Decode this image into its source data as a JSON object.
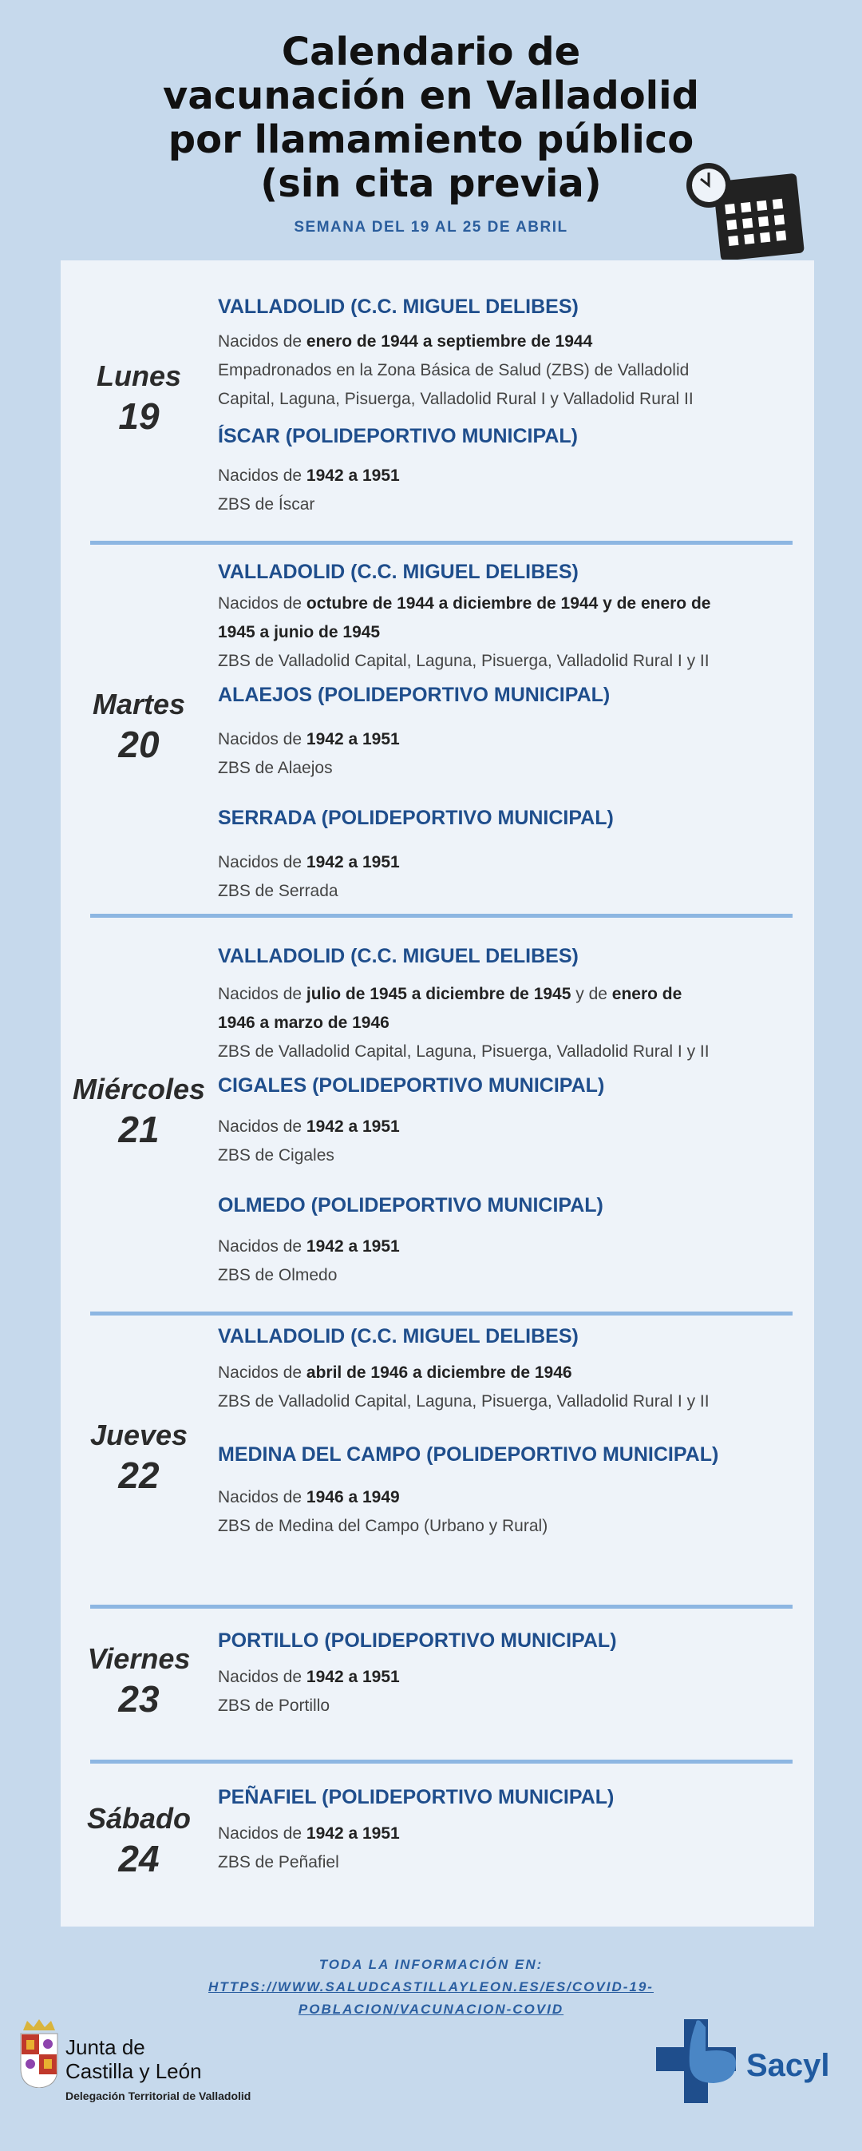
{
  "header": {
    "title_lines": [
      "Calendario de",
      "vacunación en Valladolid",
      "por llamamiento público",
      "(sin cita previa)"
    ],
    "subtitle": "SEMANA DEL 19 AL 25 DE ABRIL",
    "icon": "clock-calendar-icon"
  },
  "colors": {
    "background": "#c6d9ec",
    "panel": "#eef3f9",
    "heading": "#1f4e8c",
    "divider": "#8db6e2",
    "link": "#2a5ea0"
  },
  "days": [
    {
      "name": "Lunes",
      "num": "19",
      "sites": [
        {
          "title": "VALLADOLID (C.C. MIGUEL DELIBES)",
          "lines": [
            [
              {
                "t": "Nacidos de "
              },
              {
                "t": "enero de 1944 a septiembre de 1944",
                "b": true
              }
            ],
            [
              {
                "t": "Empadronados en la Zona Básica de Salud (ZBS) de Valladolid"
              }
            ],
            [
              {
                "t": "Capital, Laguna, Pisuerga, Valladolid Rural I y Valladolid Rural II"
              }
            ]
          ]
        },
        {
          "title": "ÍSCAR (POLIDEPORTIVO MUNICIPAL)",
          "lines": [
            [
              {
                "t": "Nacidos de "
              },
              {
                "t": "1942 a 1951",
                "b": true
              }
            ],
            [
              {
                "t": "ZBS de Íscar"
              }
            ]
          ]
        }
      ]
    },
    {
      "name": "Martes",
      "num": "20",
      "sites": [
        {
          "title": "VALLADOLID (C.C. MIGUEL DELIBES)",
          "lines": [
            [
              {
                "t": "Nacidos de "
              },
              {
                "t": "octubre de 1944 a diciembre de 1944 y de enero de",
                "b": true
              }
            ],
            [
              {
                "t": "1945 a junio de 1945",
                "b": true
              }
            ],
            [
              {
                "t": "ZBS de Valladolid Capital, Laguna, Pisuerga, Valladolid Rural I y  II"
              }
            ]
          ]
        },
        {
          "title": "ALAEJOS (POLIDEPORTIVO MUNICIPAL)",
          "lines": [
            [
              {
                "t": "Nacidos de "
              },
              {
                "t": "1942 a 1951",
                "b": true
              }
            ],
            [
              {
                "t": "ZBS de Alaejos"
              }
            ]
          ]
        },
        {
          "title": "SERRADA (POLIDEPORTIVO MUNICIPAL)",
          "lines": [
            [
              {
                "t": "Nacidos de "
              },
              {
                "t": "1942 a 1951",
                "b": true
              }
            ],
            [
              {
                "t": "ZBS de Serrada"
              }
            ]
          ]
        }
      ]
    },
    {
      "name": "Miércoles",
      "num": "21",
      "sites": [
        {
          "title": "VALLADOLID (C.C. MIGUEL DELIBES)",
          "lines": [
            [
              {
                "t": "Nacidos de "
              },
              {
                "t": "julio de 1945 a diciembre de 1945",
                "b": true
              },
              {
                "t": " y de "
              },
              {
                "t": "enero de",
                "b": true
              }
            ],
            [
              {
                "t": "1946 a marzo de 1946",
                "b": true
              }
            ],
            [
              {
                "t": "ZBS de Valladolid Capital, Laguna, Pisuerga, Valladolid Rural I y II"
              }
            ]
          ]
        },
        {
          "title": "CIGALES (POLIDEPORTIVO MUNICIPAL)",
          "lines": [
            [
              {
                "t": "Nacidos de "
              },
              {
                "t": "1942 a 1951",
                "b": true
              }
            ],
            [
              {
                "t": "ZBS de Cigales"
              }
            ]
          ]
        },
        {
          "title": "OLMEDO (POLIDEPORTIVO MUNICIPAL)",
          "lines": [
            [
              {
                "t": "Nacidos de "
              },
              {
                "t": "1942 a 1951",
                "b": true
              }
            ],
            [
              {
                "t": "ZBS de Olmedo"
              }
            ]
          ]
        }
      ]
    },
    {
      "name": "Jueves",
      "num": "22",
      "sites": [
        {
          "title": "VALLADOLID (C.C. MIGUEL DELIBES)",
          "lines": [
            [
              {
                "t": "Nacidos de "
              },
              {
                "t": "abril de 1946 a diciembre de 1946",
                "b": true
              }
            ],
            [
              {
                "t": "ZBS de Valladolid Capital, Laguna, Pisuerga, Valladolid Rural I y II"
              }
            ]
          ]
        },
        {
          "title": "MEDINA DEL CAMPO (POLIDEPORTIVO MUNICIPAL)",
          "lines": [
            [
              {
                "t": "Nacidos de "
              },
              {
                "t": "1946 a 1949",
                "b": true
              }
            ],
            [
              {
                "t": "ZBS de Medina del Campo (Urbano y Rural)"
              }
            ]
          ]
        }
      ]
    },
    {
      "name": "Viernes",
      "num": "23",
      "sites": [
        {
          "title": "PORTILLO  (POLIDEPORTIVO MUNICIPAL)",
          "lines": [
            [
              {
                "t": "Nacidos de "
              },
              {
                "t": "1942 a 1951",
                "b": true
              }
            ],
            [
              {
                "t": "ZBS de Portillo"
              }
            ]
          ]
        }
      ]
    },
    {
      "name": "Sábado",
      "num": "24",
      "sites": [
        {
          "title": "PEÑAFIEL (POLIDEPORTIVO MUNICIPAL)",
          "lines": [
            [
              {
                "t": "Nacidos de "
              },
              {
                "t": "1942 a 1951",
                "b": true
              }
            ],
            [
              {
                "t": "ZBS de Peñafiel"
              }
            ]
          ]
        }
      ]
    }
  ],
  "footer": {
    "info_label": "TODA LA INFORMACIÓN EN:",
    "url_line1": "HTTPS://WWW.SALUDCASTILLAYLEON.ES/ES/COVID-19-",
    "url_line2": "POBLACION/VACUNACION-COVID"
  },
  "logos": {
    "junta_line1": "Junta de",
    "junta_line2": "Castilla y León",
    "junta_sub": "Delegación Territorial de Valladolid",
    "sacyl": "Sacyl"
  }
}
